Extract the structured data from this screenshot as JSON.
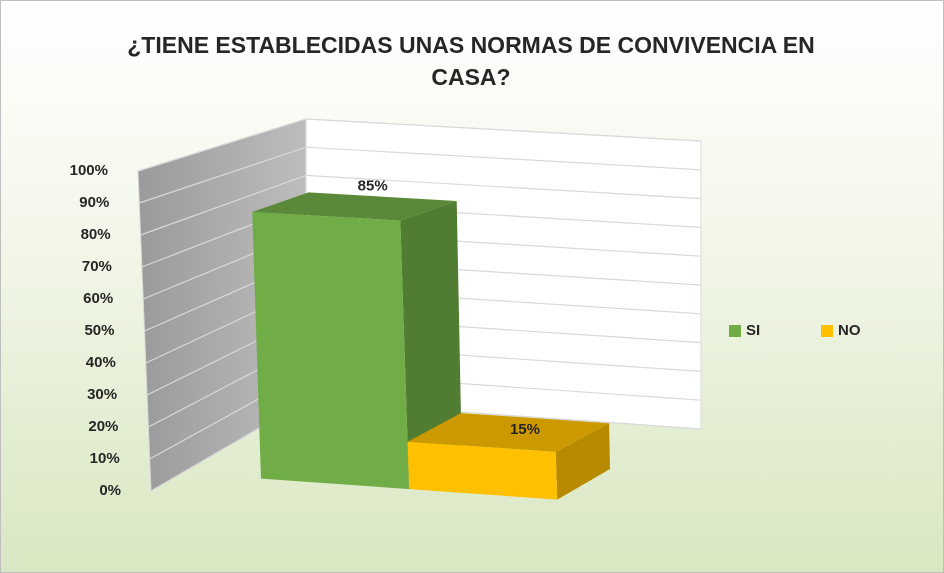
{
  "chart_data": {
    "type": "bar3d",
    "title": "¿TIENE ESTABLECIDAS UNAS NORMAS DE CONVIVENCIA EN CASA?",
    "series": [
      {
        "name": "SI",
        "color": "#70ad47",
        "values": [
          85
        ],
        "value_labels": [
          "85%"
        ]
      },
      {
        "name": "NO",
        "color": "#ffc000",
        "values": [
          15
        ],
        "value_labels": [
          "15%"
        ]
      }
    ],
    "ylim": [
      0,
      100
    ],
    "yticks": [
      {
        "value": 0,
        "label": "0%"
      },
      {
        "value": 10,
        "label": "10%"
      },
      {
        "value": 20,
        "label": "20%"
      },
      {
        "value": 30,
        "label": "30%"
      },
      {
        "value": 40,
        "label": "40%"
      },
      {
        "value": 50,
        "label": "50%"
      },
      {
        "value": 60,
        "label": "60%"
      },
      {
        "value": 70,
        "label": "70%"
      },
      {
        "value": 80,
        "label": "80%"
      },
      {
        "value": 90,
        "label": "90%"
      },
      {
        "value": 100,
        "label": "100%"
      }
    ],
    "grid": true,
    "legend": "right"
  }
}
